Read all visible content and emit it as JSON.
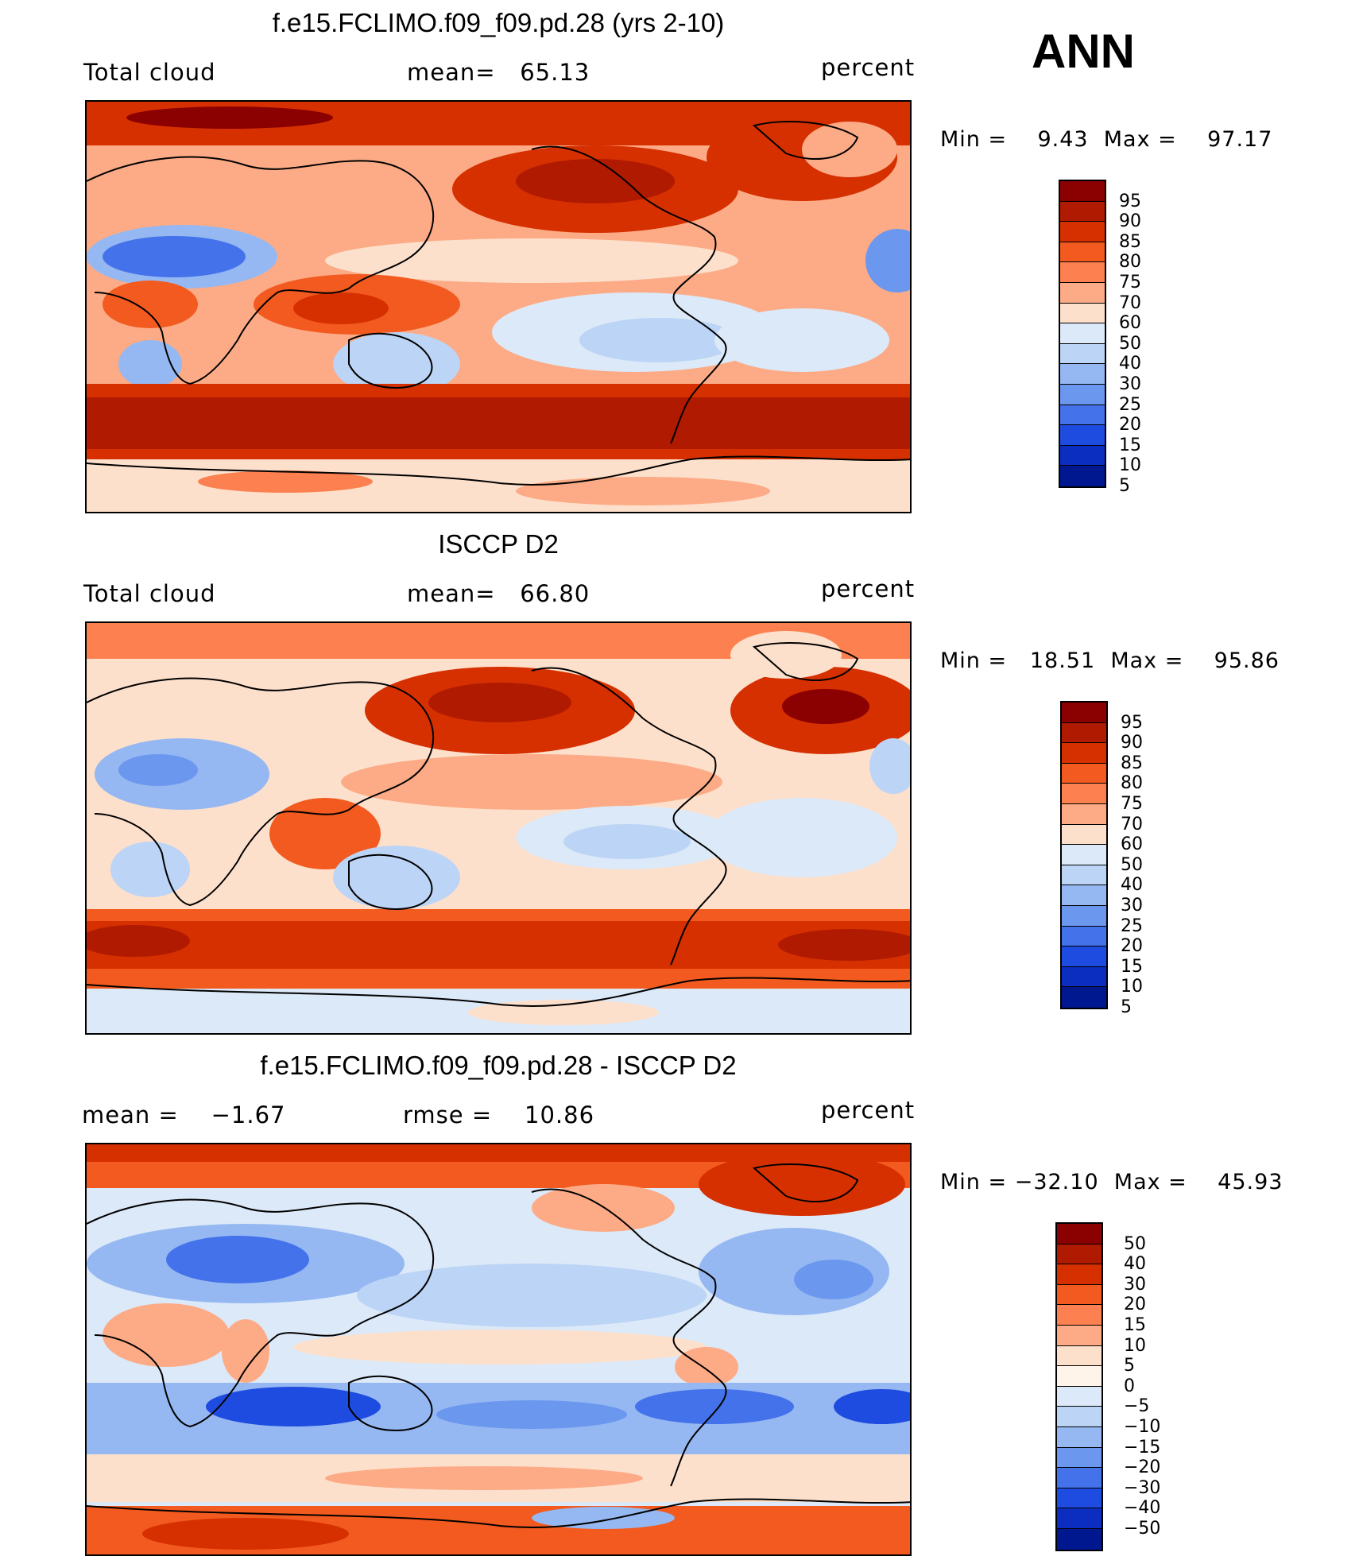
{
  "season": "ANN",
  "units": "percent",
  "chart_data": [
    {
      "type": "heatmap",
      "title": "f.e15.FCLIMO.f09_f09.pd.28 (yrs 2-10)",
      "left_label": "Total cloud",
      "center_label": "mean=   65.13",
      "right_label": "percent",
      "min_max": "Min =    9.43  Max =    97.17",
      "mean": 65.13,
      "min": 9.43,
      "max": 97.17,
      "levels": [
        "95",
        "90",
        "85",
        "80",
        "75",
        "70",
        "60",
        "50",
        "40",
        "30",
        "25",
        "20",
        "15",
        "10",
        "5"
      ],
      "colors": [
        "#8b0000",
        "#b01a00",
        "#d63000",
        "#f25a1f",
        "#fc8050",
        "#fcab86",
        "#fde0cc",
        "#dce9f8",
        "#bcd4f5",
        "#95b8f2",
        "#6b97ee",
        "#4372ea",
        "#1f4ce0",
        "#0b2ec0",
        "#00188f"
      ]
    },
    {
      "type": "heatmap",
      "title": "ISCCP D2",
      "left_label": "Total cloud",
      "center_label": "mean=   66.80",
      "right_label": "percent",
      "min_max": "Min =   18.51  Max =    95.86",
      "mean": 66.8,
      "min": 18.51,
      "max": 95.86,
      "levels": [
        "95",
        "90",
        "85",
        "80",
        "75",
        "70",
        "60",
        "50",
        "40",
        "30",
        "25",
        "20",
        "15",
        "10",
        "5"
      ],
      "colors": [
        "#8b0000",
        "#b01a00",
        "#d63000",
        "#f25a1f",
        "#fc8050",
        "#fcab86",
        "#fde0cc",
        "#dce9f8",
        "#bcd4f5",
        "#95b8f2",
        "#6b97ee",
        "#4372ea",
        "#1f4ce0",
        "#0b2ec0",
        "#00188f"
      ]
    },
    {
      "type": "heatmap",
      "title": "f.e15.FCLIMO.f09_f09.pd.28 - ISCCP D2",
      "left_label": "mean =    −1.67",
      "center_label": "rmse =    10.86",
      "right_label": "percent",
      "min_max": "Min = −32.10  Max =    45.93",
      "mean": -1.67,
      "rmse": 10.86,
      "min": -32.1,
      "max": 45.93,
      "levels": [
        "50",
        "40",
        "30",
        "20",
        "15",
        "10",
        "5",
        "0",
        "−5",
        "−10",
        "−15",
        "−20",
        "−30",
        "−40",
        "−50"
      ],
      "colors": [
        "#8b0000",
        "#b01a00",
        "#d63000",
        "#f25a1f",
        "#fc8050",
        "#fcab86",
        "#fde0cc",
        "#fff4ea",
        "#dce9f8",
        "#bcd4f5",
        "#95b8f2",
        "#6b97ee",
        "#4372ea",
        "#1f4ce0",
        "#0b2ec0",
        "#00188f"
      ]
    }
  ]
}
